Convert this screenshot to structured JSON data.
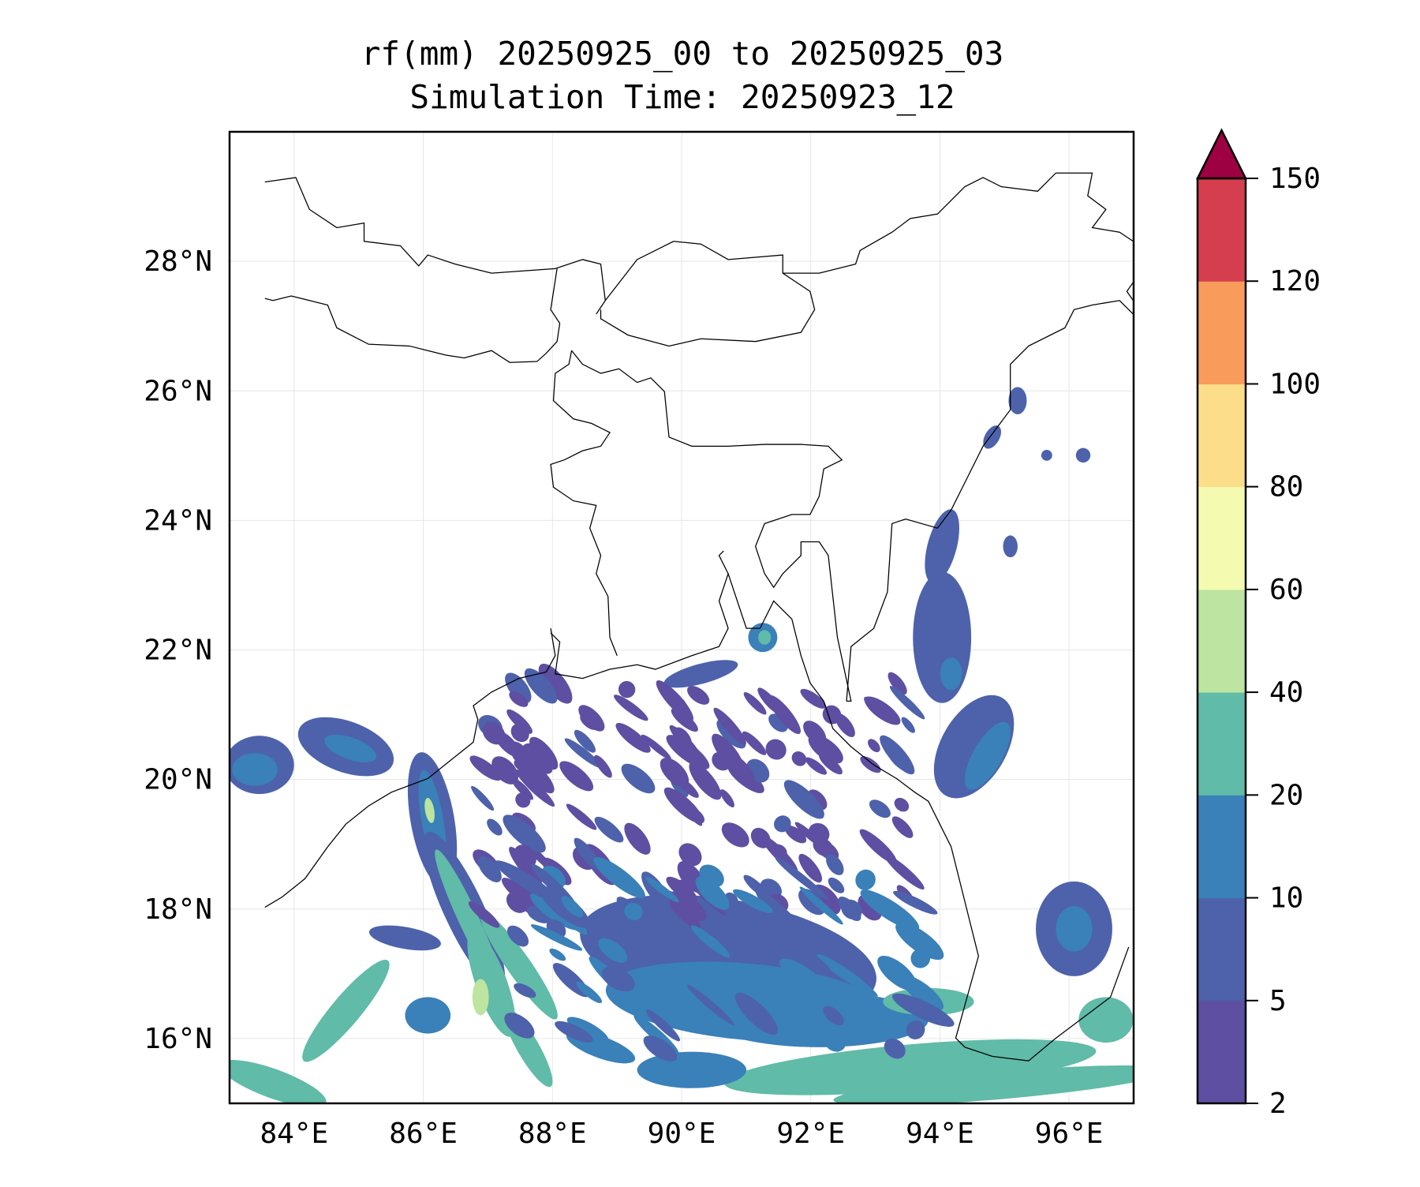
{
  "chart_data": {
    "type": "heatmap",
    "subtype": "filled-contour-map",
    "title": "rf(mm) 20250925_00 to 20250925_03",
    "subtitle": "Simulation Time: 20250923_12",
    "variable": "rf(mm)",
    "xlim": [
      83,
      97
    ],
    "ylim": [
      15,
      30
    ],
    "xticks": [
      84,
      86,
      88,
      90,
      92,
      94,
      96
    ],
    "xtick_labels": [
      "84°E",
      "86°E",
      "88°E",
      "90°E",
      "92°E",
      "94°E",
      "96°E"
    ],
    "yticks": [
      16,
      18,
      20,
      22,
      24,
      26,
      28
    ],
    "ytick_labels": [
      "16°N",
      "18°N",
      "20°N",
      "22°N",
      "24°N",
      "26°N",
      "28°N"
    ],
    "grid": true,
    "colorbar": {
      "placement": "right",
      "extend": "max",
      "levels": [
        2,
        5,
        10,
        20,
        40,
        60,
        80,
        100,
        120,
        150
      ],
      "tick_labels": [
        "2",
        "5",
        "10",
        "20",
        "40",
        "60",
        "80",
        "100",
        "120",
        "150"
      ],
      "colors": [
        "#5e4fa2",
        "#4d62ab",
        "#3a80b9",
        "#60bba8",
        "#bde4a0",
        "#f4fbb0",
        "#fcde8a",
        "#f99b5a",
        "#d53e4f",
        "#9e0142"
      ]
    }
  }
}
